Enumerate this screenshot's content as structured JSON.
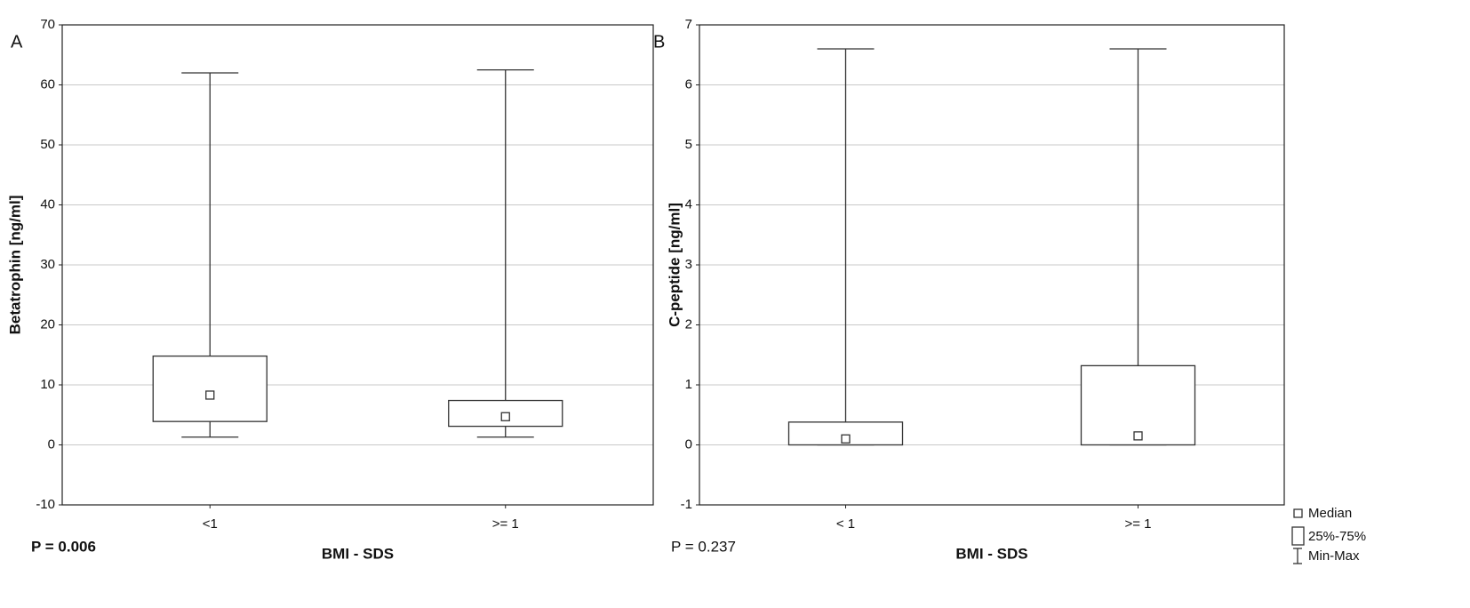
{
  "chart_data": [
    {
      "type": "box",
      "panel": "A",
      "y_label": "Betatrophin [ng/ml]",
      "x_label": "BMI - SDS",
      "p_value": "P = 0.006",
      "categories": [
        "<1",
        ">= 1"
      ],
      "min": [
        1.3,
        1.3
      ],
      "q1": [
        3.9,
        3.1
      ],
      "median": [
        8.3,
        4.7
      ],
      "q3": [
        14.8,
        7.4
      ],
      "max": [
        62,
        62.5
      ],
      "ylim": [
        -10,
        70
      ],
      "yticks": [
        -10,
        0,
        10,
        20,
        30,
        40,
        50,
        60,
        70
      ],
      "grid": true
    },
    {
      "type": "box",
      "panel": "B",
      "y_label": "C-peptide [ng/ml]",
      "x_label": "BMI - SDS",
      "p_value": "P = 0.237",
      "categories": [
        "< 1",
        ">= 1"
      ],
      "min": [
        0,
        0
      ],
      "q1": [
        0,
        0
      ],
      "median": [
        0.1,
        0.15
      ],
      "q3": [
        0.38,
        1.32
      ],
      "max": [
        6.6,
        6.6
      ],
      "ylim": [
        -1,
        7
      ],
      "yticks": [
        -1,
        0,
        1,
        2,
        3,
        4,
        5,
        6,
        7
      ],
      "grid": true,
      "legend": {
        "median": "Median",
        "box": "25%-75%",
        "whisker": "Min-Max"
      }
    }
  ]
}
